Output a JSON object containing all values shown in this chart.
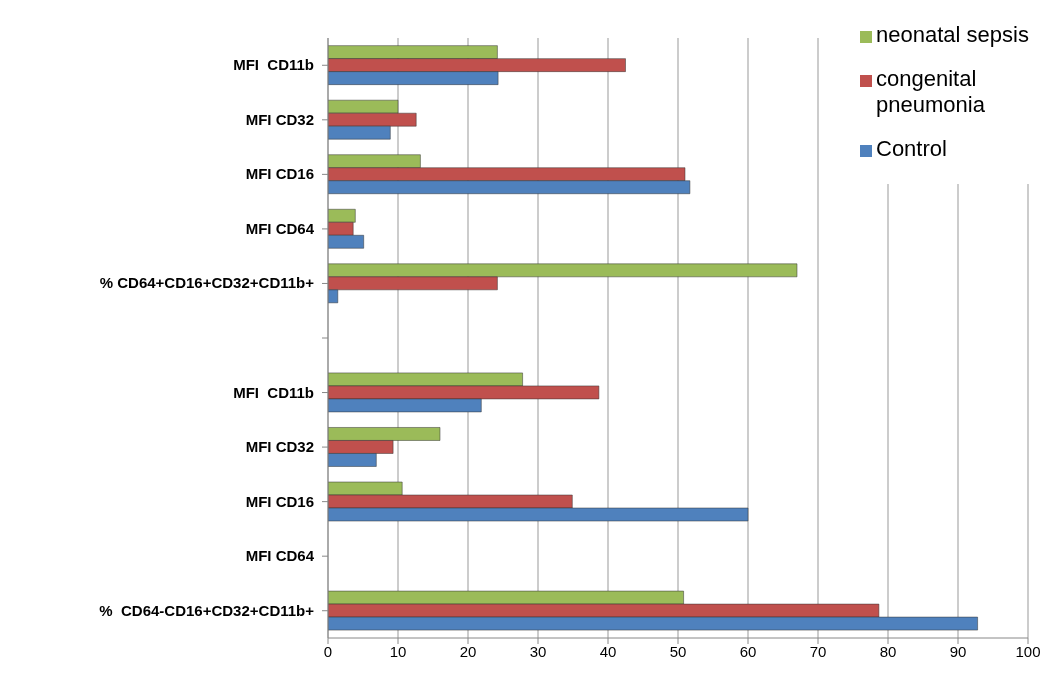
{
  "chart_data": {
    "type": "bar",
    "orientation": "horizontal",
    "categories": [
      "MFI  CD11b",
      "MFI CD32",
      "MFI CD16",
      "MFI CD64",
      "% CD64+CD16+CD32+CD11b+",
      null,
      "MFI  CD11b",
      "MFI CD32",
      "MFI CD16",
      "MFI CD64",
      "%  CD64-CD16+CD32+CD11b+"
    ],
    "series": [
      {
        "name": "neonatal sepsis",
        "color": "#9bbb59",
        "values": [
          24.2,
          10,
          13.2,
          3.9,
          67,
          null,
          27.8,
          16,
          10.6,
          null,
          50.8
        ]
      },
      {
        "name": "congenital pneumonia",
        "color": "#c0504d",
        "values": [
          42.5,
          12.6,
          51,
          3.6,
          24.2,
          null,
          38.7,
          9.3,
          34.9,
          null,
          78.7
        ]
      },
      {
        "name": "Control",
        "color": "#4f81bd",
        "values": [
          24.3,
          8.9,
          51.7,
          5.1,
          1.4,
          null,
          21.9,
          6.9,
          60,
          null,
          92.8
        ]
      }
    ],
    "xlim": [
      0,
      100
    ],
    "xticks": [
      0,
      10,
      20,
      30,
      40,
      50,
      60,
      70,
      80,
      90,
      100
    ],
    "grid": "x",
    "legend": "top right"
  }
}
